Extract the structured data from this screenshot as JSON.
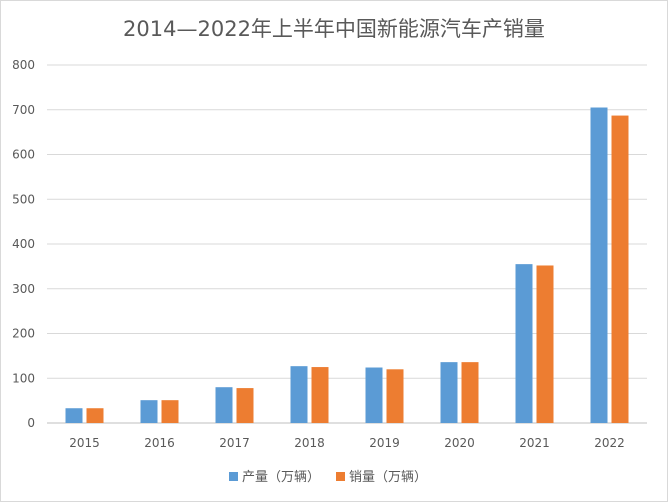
{
  "chart_data": {
    "type": "bar",
    "title": "2014—2022年上半年中国新能源汽车产销量",
    "categories": [
      "2015",
      "2016",
      "2017",
      "2018",
      "2019",
      "2020",
      "2021",
      "2022"
    ],
    "series": [
      {
        "name": "产量（万辆）",
        "color": "#5b9bd5",
        "values": [
          33,
          51,
          80,
          127,
          124,
          136,
          355,
          705
        ]
      },
      {
        "name": "销量（万辆）",
        "color": "#ed7d31",
        "values": [
          33,
          51,
          78,
          125,
          120,
          136,
          352,
          687
        ]
      }
    ],
    "ylim": [
      0,
      800
    ],
    "yticks": [
      0,
      100,
      200,
      300,
      400,
      500,
      600,
      700,
      800
    ],
    "grid": true,
    "legend_position": "bottom"
  }
}
